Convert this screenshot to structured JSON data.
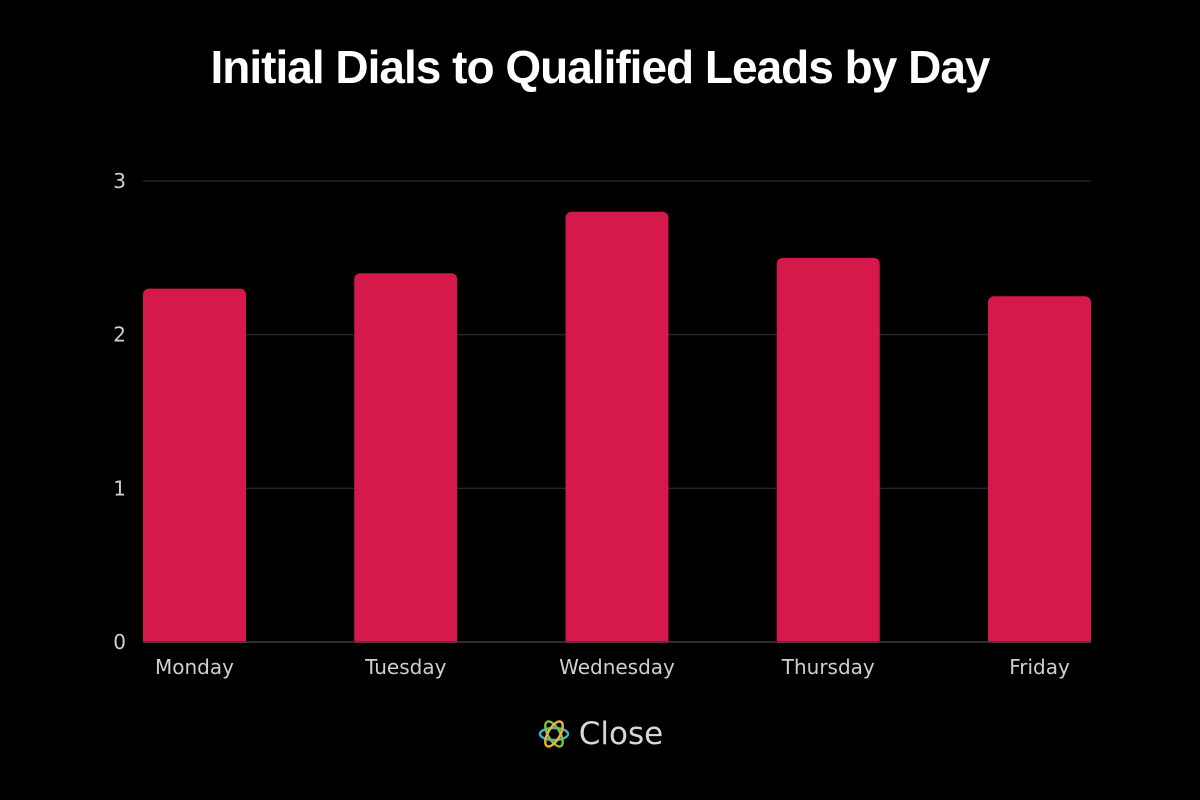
{
  "chart_data": {
    "type": "bar",
    "title": "Initial Dials to Qualified Leads by Day",
    "categories": [
      "Monday",
      "Tuesday",
      "Wednesday",
      "Thursday",
      "Friday"
    ],
    "values": [
      2.3,
      2.4,
      2.8,
      2.5,
      2.25
    ],
    "xlabel": "",
    "ylabel": "",
    "ylim": [
      0,
      3
    ],
    "yticks": [
      "0",
      "1",
      "2",
      "3"
    ],
    "grid": true,
    "colors": {
      "bar": "#d6194b",
      "background": "#000000",
      "grid": "#262626",
      "tick_label": "#cfcfcf",
      "title": "#ffffff"
    }
  },
  "brand": {
    "name": "Close",
    "logo_icon": "close-logo-icon"
  }
}
